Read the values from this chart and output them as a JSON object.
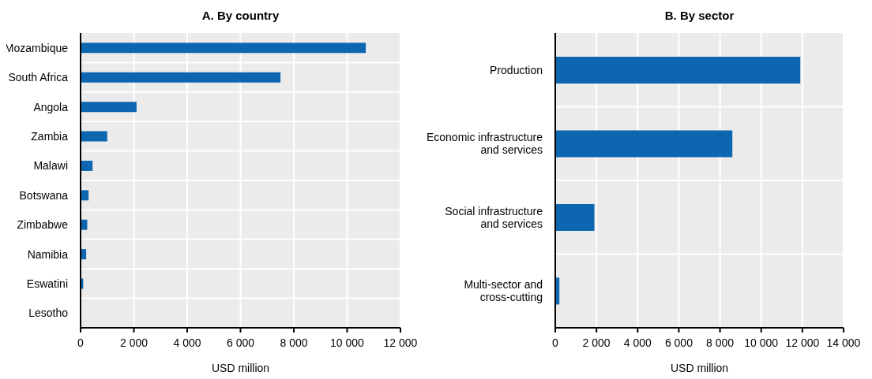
{
  "chart_data": [
    {
      "type": "bar",
      "orientation": "horizontal",
      "title": "A. By country",
      "xlabel": "USD million",
      "categories": [
        "Mozambique",
        "South Africa",
        "Angola",
        "Zambia",
        "Malawi",
        "Botswana",
        "Zimbabwe",
        "Namibia",
        "Eswatini",
        "Lesotho"
      ],
      "values": [
        10700,
        7500,
        2100,
        1000,
        450,
        300,
        250,
        210,
        100,
        0
      ],
      "color": "#0d67b0",
      "xlim": [
        0,
        12000
      ],
      "xticks": [
        0,
        {
          "value": 2000,
          "label": "2 000"
        },
        {
          "value": 4000,
          "label": "4 000"
        },
        {
          "value": 6000,
          "label": "6 000"
        },
        {
          "value": 8000,
          "label": "8 000"
        },
        {
          "value": 10000,
          "label": "10 000"
        },
        {
          "value": 12000,
          "label": "12 000"
        }
      ],
      "grid": true
    },
    {
      "type": "bar",
      "orientation": "horizontal",
      "title": "B. By sector",
      "xlabel": "USD million",
      "categories": [
        "Production",
        "Economic infrastructure\nand services",
        "Social infrastructure\nand services",
        "Multi-sector and\ncross-cutting"
      ],
      "values": [
        11900,
        8600,
        1900,
        200
      ],
      "color": "#0d67b0",
      "xlim": [
        0,
        14000
      ],
      "xticks": [
        0,
        {
          "value": 2000,
          "label": "2 000"
        },
        {
          "value": 4000,
          "label": "4 000"
        },
        {
          "value": 6000,
          "label": "6 000"
        },
        {
          "value": 8000,
          "label": "8 000"
        },
        {
          "value": 10000,
          "label": "10 000"
        },
        {
          "value": 12000,
          "label": "12 000"
        },
        {
          "value": 14000,
          "label": "14 000"
        }
      ],
      "grid": true
    }
  ]
}
